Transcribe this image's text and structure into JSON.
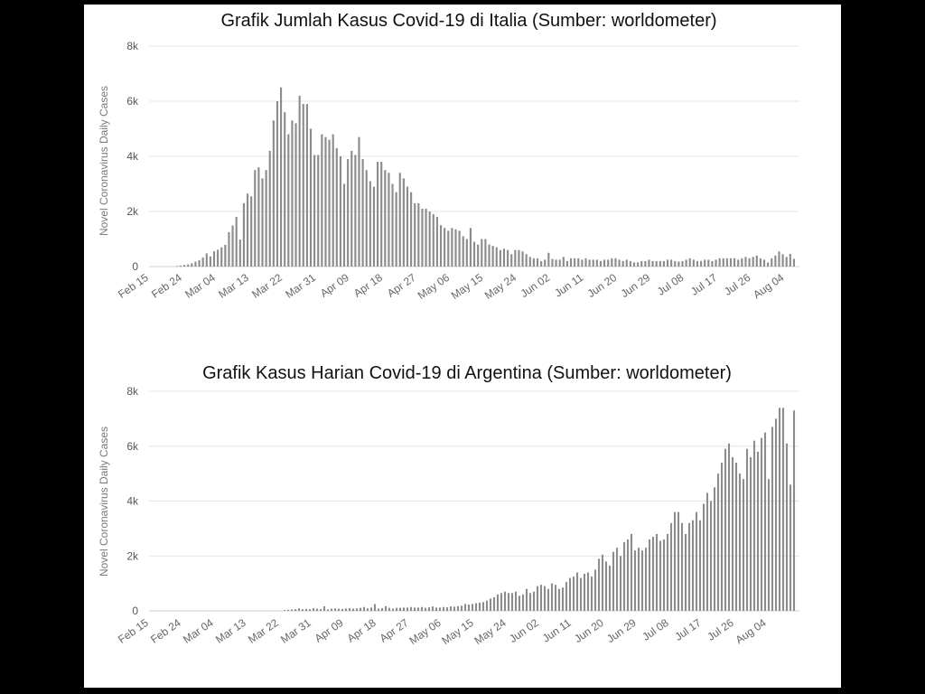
{
  "chart_data": [
    {
      "type": "bar",
      "title": "Grafik Jumlah Kasus Covid-19 di Italia (Sumber: worldometer)",
      "ylabel": "Novel Coronavirus Daily Cases",
      "xlabel": "",
      "ylim": [
        0,
        8000
      ],
      "yticks": [
        "0",
        "2k",
        "4k",
        "6k",
        "8k"
      ],
      "xticks": [
        "Feb 15",
        "Feb 24",
        "Mar 04",
        "Mar 13",
        "Mar 22",
        "Mar 31",
        "Apr 09",
        "Apr 18",
        "Apr 27",
        "May 06",
        "May 15",
        "May 24",
        "Jun 02",
        "Jun 11",
        "Jun 20",
        "Jun 29",
        "Jul 08",
        "Jul 17",
        "Jul 26",
        "Aug 04"
      ],
      "grid": true,
      "start_date": "2020-02-15",
      "values": [
        0,
        0,
        0,
        0,
        0,
        0,
        0,
        20,
        40,
        60,
        80,
        120,
        180,
        230,
        330,
        480,
        370,
        560,
        610,
        700,
        790,
        1250,
        1490,
        1800,
        980,
        2300,
        2650,
        2550,
        3500,
        3600,
        3200,
        3500,
        4200,
        5300,
        6000,
        6500,
        5600,
        4800,
        5300,
        5200,
        6200,
        5900,
        5900,
        5000,
        4050,
        4050,
        4800,
        4700,
        4600,
        4800,
        4300,
        4000,
        3000,
        3900,
        4200,
        4050,
        4700,
        3900,
        3500,
        3100,
        2900,
        3800,
        3800,
        3500,
        3400,
        3000,
        2700,
        3400,
        3200,
        2900,
        2700,
        2300,
        2300,
        2100,
        2100,
        2000,
        1900,
        1800,
        1500,
        1400,
        1300,
        1400,
        1350,
        1300,
        1100,
        1000,
        1400,
        900,
        800,
        1000,
        1000,
        800,
        750,
        700,
        600,
        650,
        600,
        450,
        600,
        600,
        550,
        450,
        350,
        300,
        300,
        200,
        250,
        500,
        280,
        250,
        250,
        350,
        200,
        300,
        300,
        300,
        250,
        300,
        250,
        250,
        250,
        200,
        250,
        250,
        300,
        300,
        250,
        200,
        250,
        200,
        150,
        150,
        200,
        200,
        250,
        200,
        200,
        200,
        200,
        250,
        250,
        200,
        180,
        200,
        250,
        300,
        250,
        200,
        200,
        250,
        250,
        200,
        250,
        300,
        300,
        300,
        300,
        300,
        250,
        300,
        350,
        300,
        350,
        400,
        300,
        250,
        150,
        300,
        400,
        550,
        450,
        350,
        460,
        280
      ]
    },
    {
      "type": "bar",
      "title": "Grafik Kasus Harian  Covid-19 di Argentina (Sumber: worldometer)",
      "ylabel": "Novel Coronavirus Daily Cases",
      "xlabel": "",
      "ylim": [
        0,
        8000
      ],
      "yticks": [
        "0",
        "2k",
        "4k",
        "6k",
        "8k"
      ],
      "xticks": [
        "Feb 15",
        "Feb 24",
        "Mar 04",
        "Mar 13",
        "Mar 22",
        "Mar 31",
        "Apr 09",
        "Apr 18",
        "Apr 27",
        "May 06",
        "May 15",
        "May 24",
        "Jun 02",
        "Jun 11",
        "Jun 20",
        "Jun 29",
        "Jul 08",
        "Jul 17",
        "Jul 26",
        "Aug 04"
      ],
      "grid": true,
      "start_date": "2020-02-15",
      "values": [
        0,
        0,
        0,
        0,
        0,
        0,
        0,
        0,
        0,
        0,
        0,
        0,
        0,
        0,
        0,
        0,
        0,
        0,
        0,
        0,
        0,
        0,
        0,
        0,
        0,
        0,
        0,
        0,
        0,
        0,
        0,
        0,
        0,
        0,
        0,
        0,
        0,
        30,
        40,
        50,
        60,
        90,
        60,
        70,
        60,
        100,
        80,
        60,
        170,
        50,
        80,
        90,
        80,
        70,
        90,
        100,
        80,
        90,
        110,
        140,
        90,
        120,
        250,
        80,
        100,
        170,
        110,
        80,
        110,
        110,
        120,
        120,
        140,
        120,
        120,
        140,
        110,
        130,
        160,
        120,
        120,
        140,
        130,
        160,
        150,
        170,
        190,
        250,
        230,
        250,
        280,
        300,
        320,
        370,
        450,
        500,
        600,
        650,
        700,
        650,
        650,
        700,
        550,
        600,
        800,
        650,
        700,
        900,
        950,
        900,
        800,
        1000,
        950,
        800,
        850,
        1050,
        1200,
        1250,
        1400,
        1200,
        1350,
        1400,
        1250,
        1500,
        1900,
        2050,
        1800,
        1650,
        2150,
        2300,
        2000,
        2500,
        2600,
        2800,
        2200,
        2300,
        2200,
        2300,
        2600,
        2700,
        2800,
        2550,
        2600,
        2800,
        3200,
        3600,
        3600,
        3200,
        2800,
        3200,
        3300,
        3600,
        3300,
        3900,
        4300,
        4000,
        4500,
        5000,
        5400,
        5900,
        6100,
        5600,
        5400,
        5000,
        4800,
        5900,
        5600,
        6200,
        5800,
        6300,
        6500,
        4800,
        6700,
        7000,
        7400,
        7400,
        6100,
        4600,
        7300
      ]
    }
  ]
}
